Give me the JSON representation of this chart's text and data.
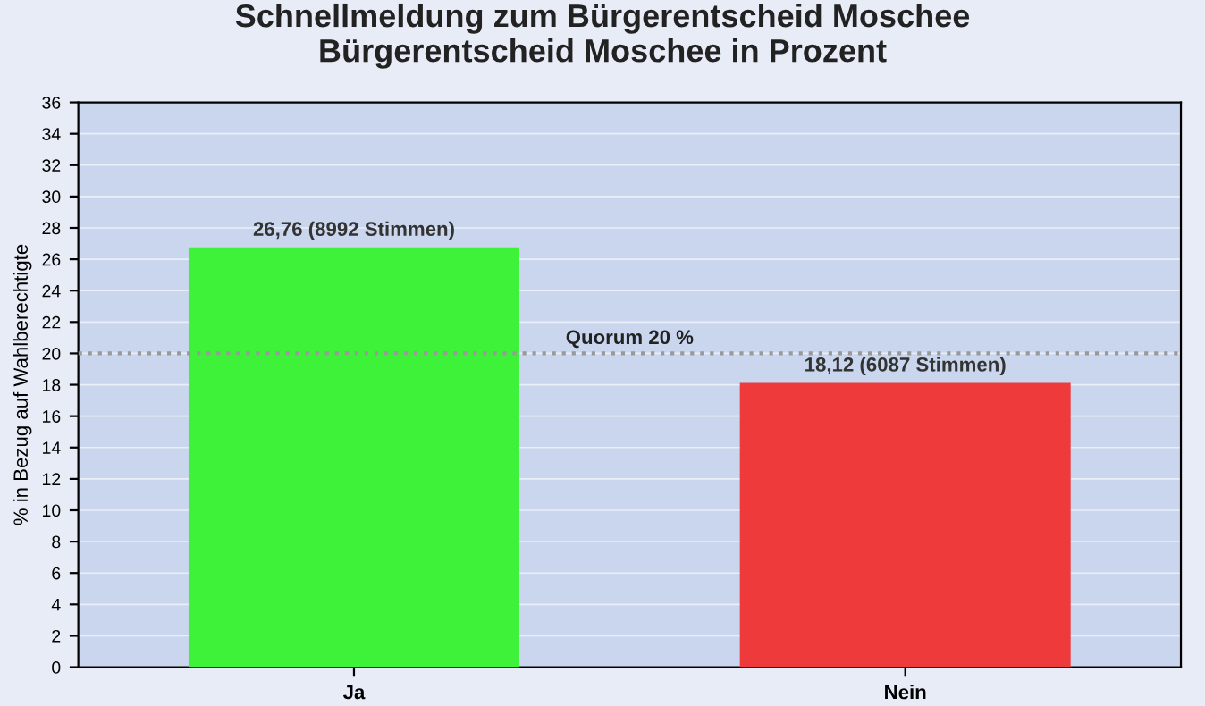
{
  "chart_data": {
    "type": "bar",
    "title": "Schnellmeldung zum Bürgerentscheid Moschee\nBürgerentscheid Moschee in Prozent",
    "ylabel": "% in Bezug auf Wahlberechtigte",
    "categories": [
      "Ja",
      "Nein"
    ],
    "values": [
      26.76,
      18.12
    ],
    "colors": [
      "#3ef23a",
      "#ee3a3a"
    ],
    "value_labels": [
      "26,76 (8992 Stimmen)",
      "18,12 (6087 Stimmen)"
    ],
    "ylim": [
      0,
      36
    ],
    "yticks": [
      0,
      2,
      4,
      6,
      8,
      10,
      12,
      14,
      16,
      18,
      20,
      22,
      24,
      26,
      28,
      30,
      32,
      34,
      36
    ],
    "grid": "y",
    "ref_lines": [
      {
        "axis": "y",
        "value": 20,
        "label": "Quorum 20 %",
        "color": "#999999",
        "line_style": "dotted"
      }
    ]
  }
}
